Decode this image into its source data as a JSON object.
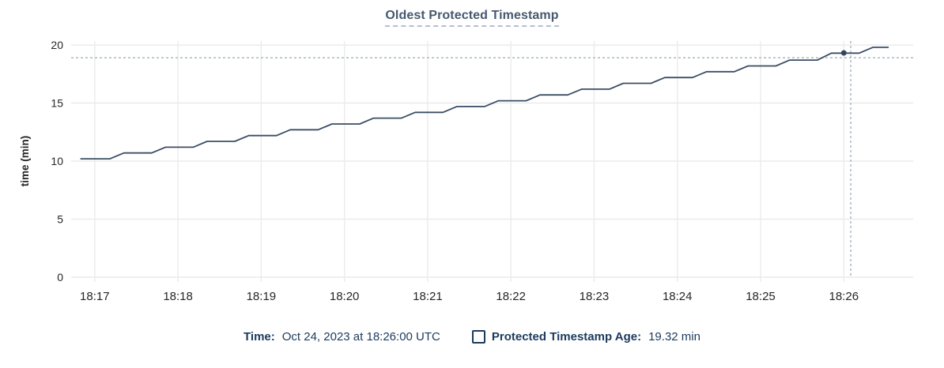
{
  "title": "Oldest Protected Timestamp",
  "footer": {
    "time_label": "Time:",
    "time_value": "Oct 24, 2023 at 18:26:00 UTC",
    "series_label": "Protected Timestamp Age:",
    "series_value": "19.32 min"
  },
  "colors": {
    "series_line": "#3b4d66",
    "marker": "#33455e",
    "crosshair": "#a9bac2",
    "gridline": "#ebebeb",
    "axis_text": "#262626",
    "axis_title": "#111111",
    "legend_navy": "#1c3a5e",
    "title_color": "#46596e"
  },
  "chart_data": {
    "type": "line",
    "title": "Oldest Protected Timestamp",
    "xlabel": "",
    "ylabel": "time (min)",
    "ylim": [
      0,
      20
    ],
    "y_ticks": [
      0,
      5,
      10,
      15,
      20
    ],
    "x_tick_labels": [
      "18:17",
      "18:18",
      "18:19",
      "18:20",
      "18:21",
      "18:22",
      "18:23",
      "18:24",
      "18:25",
      "18:26"
    ],
    "x_tick_seconds": [
      0,
      60,
      120,
      180,
      240,
      300,
      360,
      420,
      480,
      540
    ],
    "x_domain_seconds": [
      -17,
      590
    ],
    "grid": true,
    "legend_position": "bottom",
    "series": [
      {
        "name": "Protected Timestamp Age",
        "unit": "min",
        "points": [
          [
            -10,
            10.2
          ],
          [
            11,
            10.2
          ],
          [
            21,
            10.7
          ],
          [
            41,
            10.7
          ],
          [
            51,
            11.2
          ],
          [
            71,
            11.2
          ],
          [
            81,
            11.7
          ],
          [
            101,
            11.7
          ],
          [
            111,
            12.2
          ],
          [
            131,
            12.2
          ],
          [
            141,
            12.7
          ],
          [
            161,
            12.7
          ],
          [
            171,
            13.2
          ],
          [
            191,
            13.2
          ],
          [
            201,
            13.7
          ],
          [
            221,
            13.7
          ],
          [
            231,
            14.2
          ],
          [
            251,
            14.2
          ],
          [
            261,
            14.7
          ],
          [
            281,
            14.7
          ],
          [
            291,
            15.2
          ],
          [
            311,
            15.2
          ],
          [
            321,
            15.7
          ],
          [
            341,
            15.7
          ],
          [
            351,
            16.2
          ],
          [
            371,
            16.2
          ],
          [
            381,
            16.7
          ],
          [
            401,
            16.7
          ],
          [
            411,
            17.2
          ],
          [
            431,
            17.2
          ],
          [
            441,
            17.7
          ],
          [
            461,
            17.7
          ],
          [
            471,
            18.2
          ],
          [
            491,
            18.2
          ],
          [
            501,
            18.7
          ],
          [
            521,
            18.7
          ],
          [
            531,
            19.3
          ],
          [
            551,
            19.3
          ],
          [
            561,
            19.8
          ],
          [
            572,
            19.8
          ]
        ]
      }
    ],
    "hover_marker": {
      "time_s": 540,
      "value_min": 19.32,
      "time_label": "18:26"
    },
    "crosshair": {
      "time_s": 545,
      "value_min": 18.9
    }
  }
}
